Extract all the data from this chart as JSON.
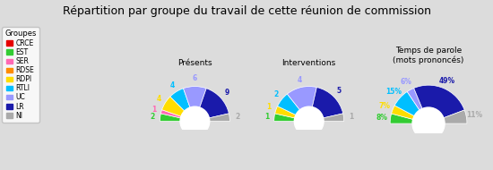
{
  "title": "Répartition par groupe du travail de cette réunion de commission",
  "background_color": "#dcdcdc",
  "groups": [
    "CRCE",
    "EST",
    "SER",
    "RDSE",
    "RDPI",
    "RTLI",
    "UC",
    "LR",
    "NI"
  ],
  "colors": [
    "#e60000",
    "#33cc33",
    "#ff69b4",
    "#ff8c00",
    "#ffdd00",
    "#00bfff",
    "#9999ff",
    "#1a1aaa",
    "#aaaaaa"
  ],
  "presences": [
    0,
    2,
    1,
    0,
    4,
    4,
    6,
    9,
    2
  ],
  "interventions": [
    0,
    1,
    0,
    0,
    1,
    2,
    4,
    5,
    1
  ],
  "temps_parole_pct": [
    0,
    8,
    0,
    0,
    7,
    15,
    6,
    49,
    11
  ],
  "subtitle_presences": "Présents",
  "subtitle_interventions": "Interventions",
  "subtitle_temps": "Temps de parole\n(mots prononcés)",
  "legend_title": "Groupes",
  "title_fontsize": 9,
  "label_fontsize": 5.5,
  "legend_fontsize": 5.5,
  "legend_title_fontsize": 6
}
